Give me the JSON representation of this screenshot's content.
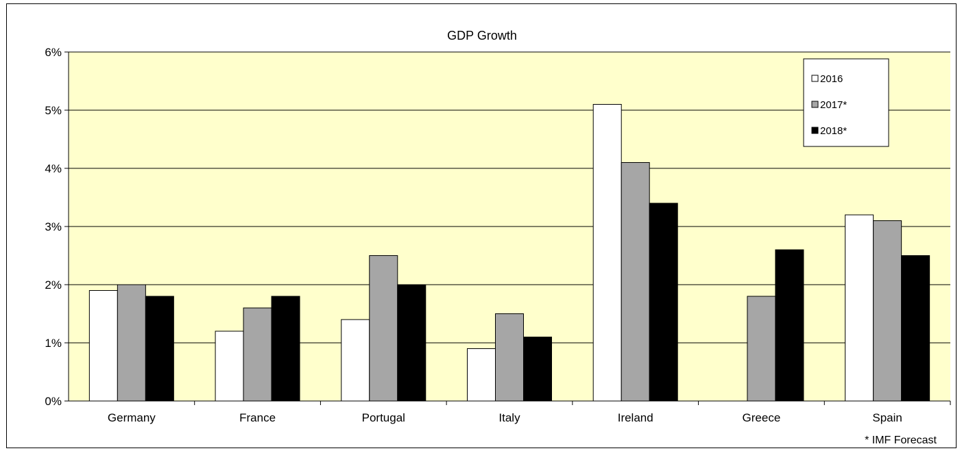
{
  "chart_data": {
    "type": "bar",
    "title": "GDP Growth",
    "categories": [
      "Germany",
      "France",
      "Portugal",
      "Italy",
      "Ireland",
      "Greece",
      "Spain"
    ],
    "series": [
      {
        "name": "2016",
        "values": [
          1.9,
          1.2,
          1.4,
          0.9,
          5.1,
          null,
          3.2
        ],
        "color": "#FFFFFF"
      },
      {
        "name": "2017*",
        "values": [
          2.0,
          1.6,
          2.5,
          1.5,
          4.1,
          1.8,
          3.1
        ],
        "color": "#A6A6A6"
      },
      {
        "name": "2018*",
        "values": [
          1.8,
          1.8,
          2.0,
          1.1,
          3.4,
          2.6,
          2.5
        ],
        "color": "#000000"
      }
    ],
    "ylim": [
      0,
      6
    ],
    "yticks": [
      "0%",
      "1%",
      "2%",
      "3%",
      "4%",
      "5%",
      "6%"
    ],
    "grid": true,
    "legend": "top-right",
    "plot_background": "#FFFFCC",
    "note": "* IMF Forecast"
  }
}
